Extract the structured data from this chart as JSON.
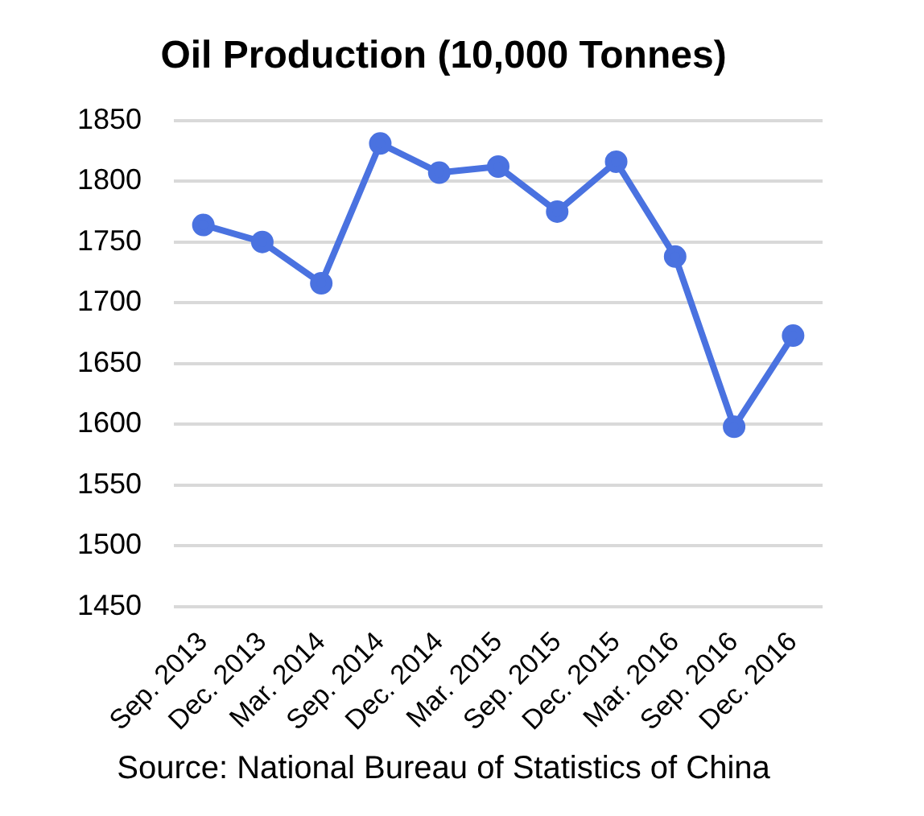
{
  "chart_data": {
    "type": "line",
    "title": "Oil Production (10,000 Tonnes)",
    "categories": [
      "Sep. 2013",
      "Dec. 2013",
      "Mar. 2014",
      "Sep. 2014",
      "Dec. 2014",
      "Mar. 2015",
      "Sep. 2015",
      "Dec. 2015",
      "Mar. 2016",
      "Sep. 2016",
      "Dec. 2016"
    ],
    "series": [
      {
        "color": "#4a72e0",
        "values": [
          1764,
          1750,
          1716,
          1831,
          1807,
          1812,
          1775,
          1816,
          1738,
          1598,
          1673
        ]
      }
    ],
    "ylim": [
      1450,
      1850
    ],
    "yticks": [
      1450,
      1500,
      1550,
      1600,
      1650,
      1700,
      1750,
      1800,
      1850
    ],
    "grid": "y",
    "marker": "circle",
    "annotations": [
      "Source: National Bureau of Statistics of China"
    ]
  }
}
